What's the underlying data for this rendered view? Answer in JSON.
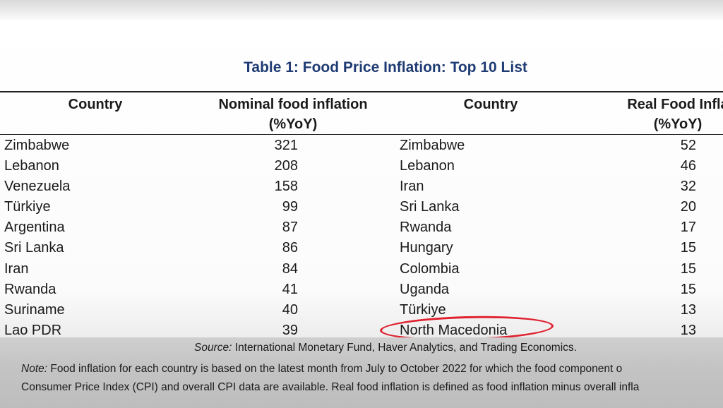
{
  "table": {
    "title": "Table 1: Food Price Inflation: Top 10 List",
    "headers": {
      "country_left": "Country",
      "nominal_line1": "Nominal food inflation",
      "nominal_line2": "(%YoY)",
      "country_right": "Country",
      "real_line1": "Real Food Infla",
      "real_line2": "(%YoY)"
    },
    "rows": [
      {
        "c1": "Zimbabwe",
        "v1": "321",
        "c2": "Zimbabwe",
        "v2": "52"
      },
      {
        "c1": "Lebanon",
        "v1": "208",
        "c2": "Lebanon",
        "v2": "46"
      },
      {
        "c1": "Venezuela",
        "v1": "158",
        "c2": "Iran",
        "v2": "32"
      },
      {
        "c1": "Türkiye",
        "v1": "99",
        "c2": "Sri Lanka",
        "v2": "20"
      },
      {
        "c1": "Argentina",
        "v1": "87",
        "c2": "Rwanda",
        "v2": "17"
      },
      {
        "c1": "Sri Lanka",
        "v1": "86",
        "c2": "Hungary",
        "v2": "15"
      },
      {
        "c1": "Iran",
        "v1": "84",
        "c2": "Colombia",
        "v2": "15"
      },
      {
        "c1": "Rwanda",
        "v1": "41",
        "c2": "Uganda",
        "v2": "15"
      },
      {
        "c1": "Suriname",
        "v1": "40",
        "c2": "Türkiye",
        "v2": "13"
      },
      {
        "c1": "Lao PDR",
        "v1": "39",
        "c2": "North Macedonia",
        "v2": "13"
      }
    ],
    "highlight_color": "#e0202e"
  },
  "footer": {
    "source_label": "Source:",
    "source_text": " International Monetary Fund, Haver Analytics, and Trading Economics.",
    "note_label": "Note:",
    "note_line1": " Food inflation for each country is based on the latest month from July to October 2022 for which the food component o",
    "note_line2": "Consumer Price Index (CPI) and overall CPI data are available. Real food inflation is defined as food inflation minus overall infla"
  }
}
